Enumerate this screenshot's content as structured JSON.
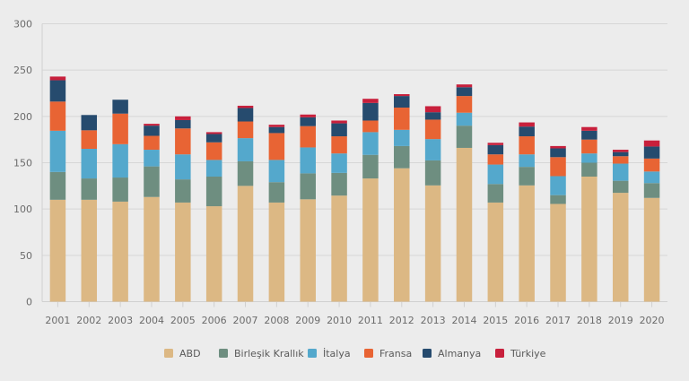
{
  "chart_data": {
    "type": "bar",
    "stacked": true,
    "title": "",
    "xlabel": "",
    "ylabel": "",
    "ylim": [
      0,
      300
    ],
    "yticks": [
      0,
      50,
      100,
      150,
      200,
      250,
      300
    ],
    "grid": true,
    "legend_position": "bottom-center",
    "categories": [
      "2001",
      "2002",
      "2003",
      "2004",
      "2005",
      "2006",
      "2007",
      "2008",
      "2009",
      "2010",
      "2011",
      "2012",
      "2013",
      "2014",
      "2015",
      "2016",
      "2017",
      "2018",
      "2019",
      "2020"
    ],
    "series": [
      {
        "name": "ABD",
        "color": "#dcb884",
        "values": [
          110,
          110,
          108,
          113,
          107,
          103,
          125,
          107,
          110.5,
          114.5,
          133,
          144,
          125.5,
          166,
          107,
          125.5,
          105.5,
          135,
          117.5,
          112
        ]
      },
      {
        "name": "Birleşik Krallık",
        "color": "#6e8e80",
        "values": [
          30,
          23,
          26,
          33,
          25,
          32,
          26.5,
          22,
          28,
          24.5,
          25.5,
          24,
          27,
          24,
          20,
          20,
          9.5,
          15,
          13,
          16
        ]
      },
      {
        "name": "İtalya",
        "color": "#54a8cc",
        "values": [
          44.5,
          32,
          36,
          18,
          27,
          18,
          25,
          24,
          28,
          21,
          24.5,
          17.5,
          23,
          14,
          21,
          13.5,
          20.5,
          10,
          18.5,
          12.5
        ]
      },
      {
        "name": "Fransa",
        "color": "#e86434",
        "values": [
          31.5,
          20,
          33,
          15,
          28,
          19,
          18,
          29,
          23,
          18.5,
          12.5,
          24,
          21,
          18,
          11,
          19.5,
          20.5,
          15,
          8,
          14
        ]
      },
      {
        "name": "Almanya",
        "color": "#264b6e",
        "values": [
          23,
          16.5,
          15,
          11,
          9,
          9,
          14.5,
          6.5,
          9.5,
          14,
          19,
          12.5,
          8,
          9.5,
          10,
          10.5,
          9.5,
          9.5,
          4.5,
          13
        ]
      },
      {
        "name": "Türkiye",
        "color": "#c8203c",
        "values": [
          4,
          0,
          0,
          2,
          4,
          2,
          2.5,
          2.5,
          3,
          3,
          4.5,
          2,
          6.5,
          3,
          2.5,
          4.5,
          2.5,
          4,
          2.5,
          6.5
        ]
      }
    ]
  }
}
